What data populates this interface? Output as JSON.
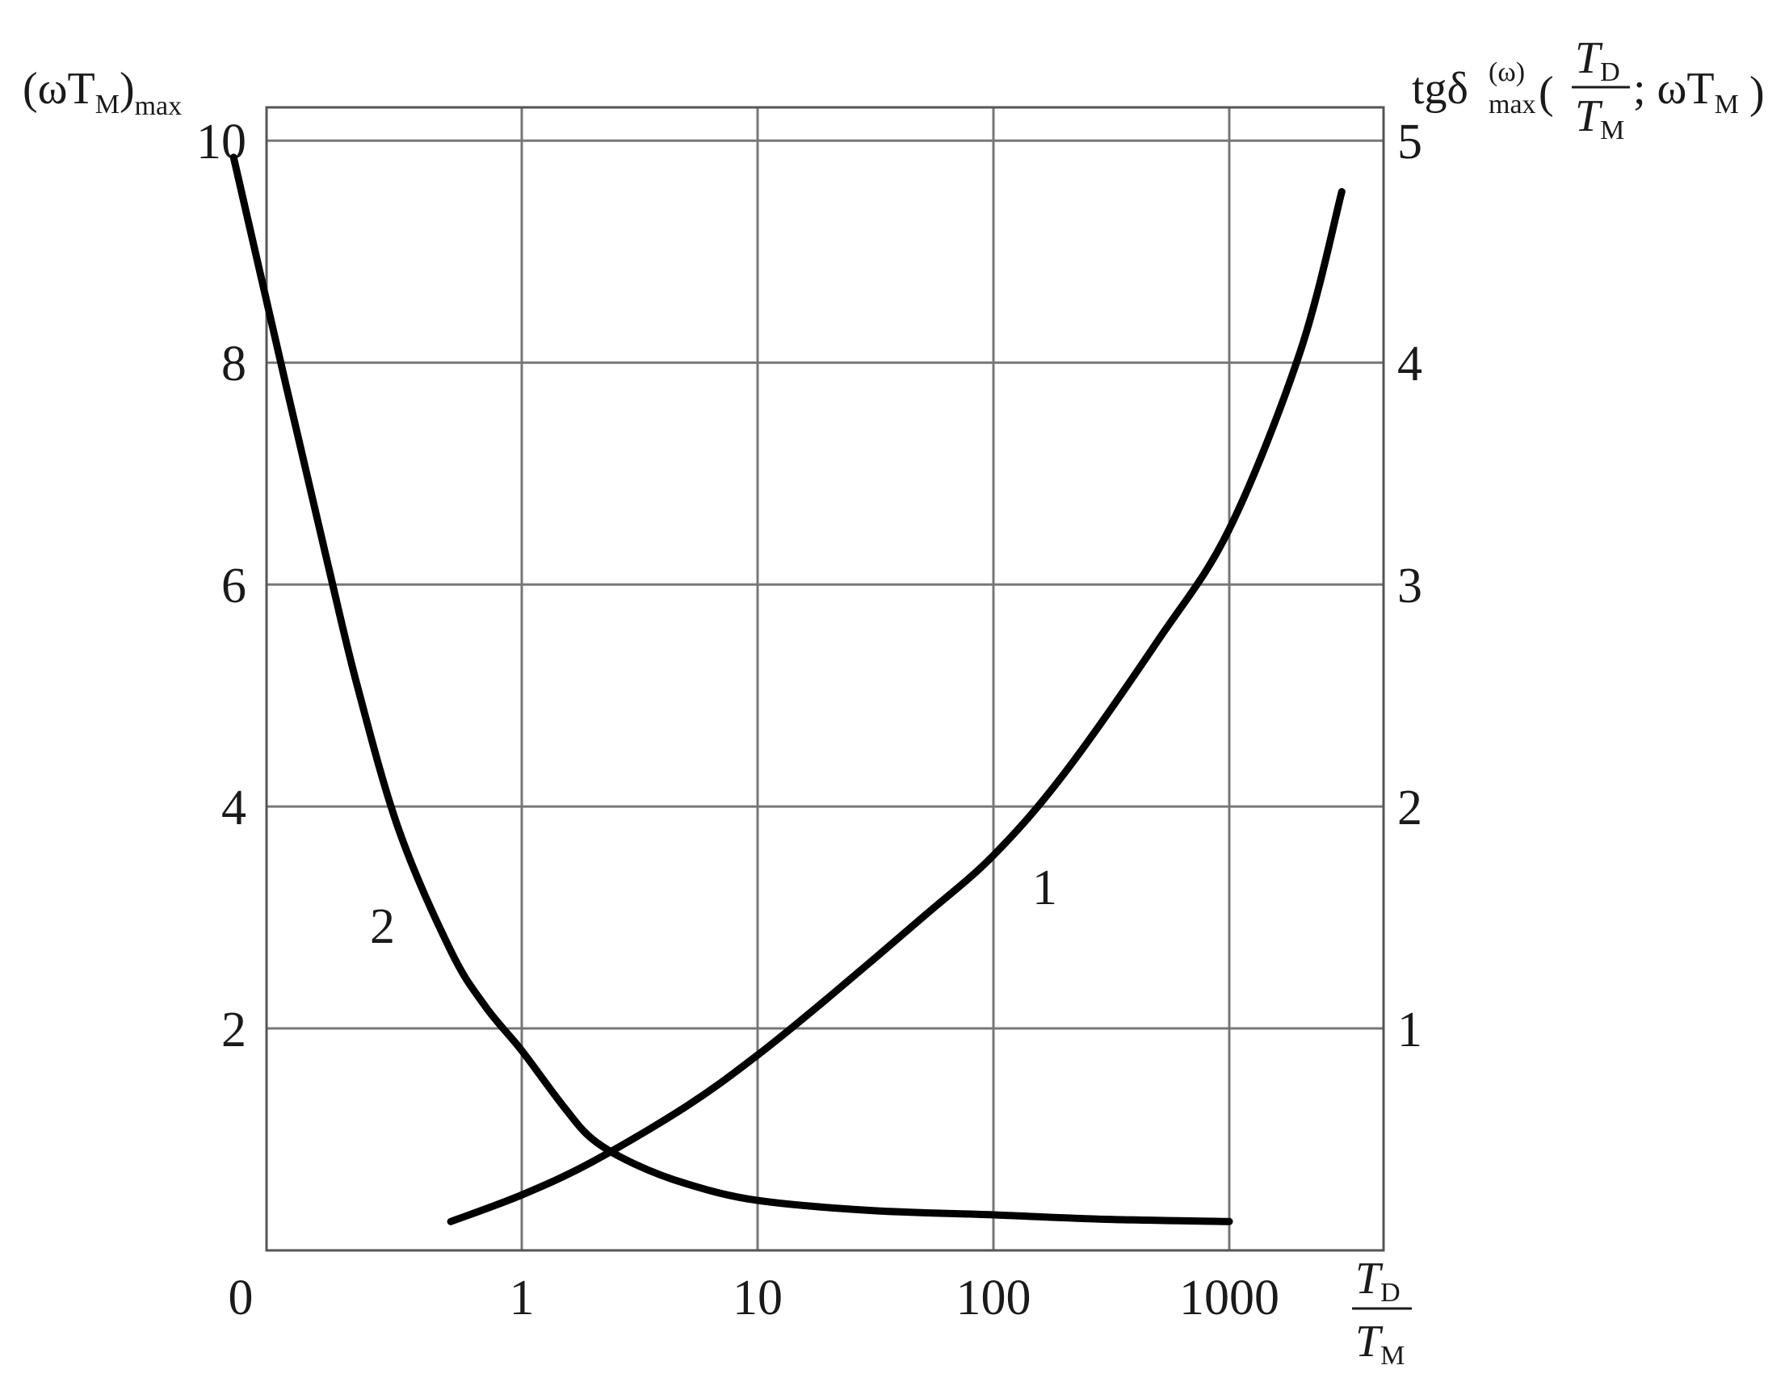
{
  "chart_data": {
    "type": "line",
    "x_axis": {
      "scale": "log",
      "origin_label": "0",
      "ticks": [
        1,
        10,
        100,
        1000
      ],
      "tick_labels": [
        "1",
        "10",
        "100",
        "1000"
      ],
      "label_numerator": "T",
      "label_numerator_sub": "D",
      "label_denominator": "T",
      "label_denominator_sub": "M"
    },
    "y_left": {
      "label": "(ωT",
      "label_sub": "M",
      "label_close": ")",
      "label_subscript2": "max",
      "ylim": [
        0,
        10.3
      ],
      "ticks": [
        2,
        4,
        6,
        8,
        10
      ],
      "tick_labels": [
        "2",
        "4",
        "6",
        "8",
        "10"
      ]
    },
    "y_right": {
      "label_prefix": "tgδ",
      "label_sup": "(ω)",
      "label_sub": "max",
      "label_frac_num": "T",
      "label_frac_num_sub": "D",
      "label_frac_den": "T",
      "label_frac_den_sub": "M",
      "label_after": "; ωT",
      "label_after_sub": "M",
      "ylim": [
        0,
        5.15
      ],
      "ticks": [
        1,
        2,
        3,
        4,
        5
      ],
      "tick_labels": [
        "1",
        "2",
        "3",
        "4",
        "5"
      ]
    },
    "grid": true,
    "series": [
      {
        "name": "1",
        "axis": "right",
        "x": [
          0.5,
          1,
          2,
          5,
          10,
          20,
          50,
          100,
          200,
          500,
          1000,
          2000,
          3000
        ],
        "y": [
          0.13,
          0.25,
          0.4,
          0.65,
          0.88,
          1.14,
          1.5,
          1.78,
          2.15,
          2.75,
          3.25,
          4.05,
          4.77
        ]
      },
      {
        "name": "2",
        "axis": "left",
        "x": [
          0.06,
          0.1,
          0.15,
          0.2,
          0.3,
          0.5,
          0.7,
          1,
          1.5,
          2,
          3,
          5,
          10,
          30,
          100,
          300,
          1000
        ],
        "y": [
          9.85,
          7.8,
          6.2,
          5.1,
          3.8,
          2.7,
          2.2,
          1.8,
          1.3,
          1.0,
          0.78,
          0.6,
          0.45,
          0.36,
          0.32,
          0.28,
          0.26
        ]
      }
    ],
    "annotations": [
      "1",
      "2"
    ]
  }
}
